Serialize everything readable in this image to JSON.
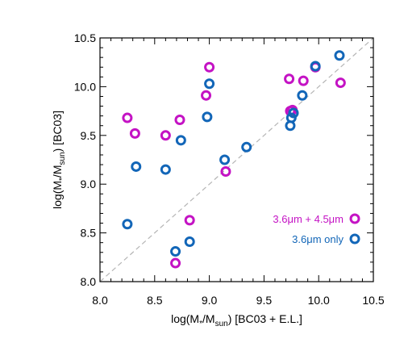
{
  "chart_data": {
    "type": "scatter",
    "xlabel": {
      "main": "log(M",
      "sub1": "*",
      "sep": "/M",
      "sub2": "sun",
      "tail": ") [BC03 + E.L.]"
    },
    "ylabel": {
      "main": "log(M",
      "sub1": "*",
      "sep": "/M",
      "sub2": "sun",
      "tail": ") [BC03]"
    },
    "xlim": [
      8.0,
      10.5
    ],
    "ylim": [
      8.0,
      10.5
    ],
    "x_ticks": [
      "8.0",
      "8.5",
      "9.0",
      "9.5",
      "10.0",
      "10.5"
    ],
    "y_ticks": [
      "8.0",
      "8.5",
      "9.0",
      "9.5",
      "10.0",
      "10.5"
    ],
    "grid": false,
    "reference_line": "one-to-one dashed diagonal",
    "legend_position": "bottom-right",
    "series": [
      {
        "name": "3.6μm + 4.5μm",
        "color": "#c413c4",
        "points": [
          [
            8.25,
            9.68
          ],
          [
            8.32,
            9.52
          ],
          [
            8.6,
            9.5
          ],
          [
            8.73,
            9.66
          ],
          [
            8.97,
            9.91
          ],
          [
            9.0,
            10.2
          ],
          [
            9.15,
            9.13
          ],
          [
            8.82,
            8.63
          ],
          [
            8.69,
            8.19
          ],
          [
            9.73,
            10.08
          ],
          [
            9.74,
            9.75
          ],
          [
            9.76,
            9.76
          ],
          [
            9.86,
            10.06
          ],
          [
            9.97,
            10.2
          ],
          [
            10.2,
            10.04
          ]
        ]
      },
      {
        "name": "3.6μm  only",
        "color": "#1266b8",
        "points": [
          [
            8.25,
            8.59
          ],
          [
            8.33,
            9.18
          ],
          [
            8.6,
            9.15
          ],
          [
            8.74,
            9.45
          ],
          [
            8.69,
            8.31
          ],
          [
            8.82,
            8.41
          ],
          [
            8.98,
            9.69
          ],
          [
            9.0,
            10.03
          ],
          [
            9.14,
            9.25
          ],
          [
            9.34,
            9.38
          ],
          [
            9.74,
            9.6
          ],
          [
            9.75,
            9.68
          ],
          [
            9.77,
            9.73
          ],
          [
            9.85,
            9.91
          ],
          [
            9.97,
            10.21
          ],
          [
            10.19,
            10.32
          ]
        ]
      }
    ],
    "legend": [
      {
        "label": "3.6μm + 4.5μm",
        "color": "#c413c4"
      },
      {
        "label": "3.6μm  only",
        "color": "#1266b8"
      }
    ]
  }
}
